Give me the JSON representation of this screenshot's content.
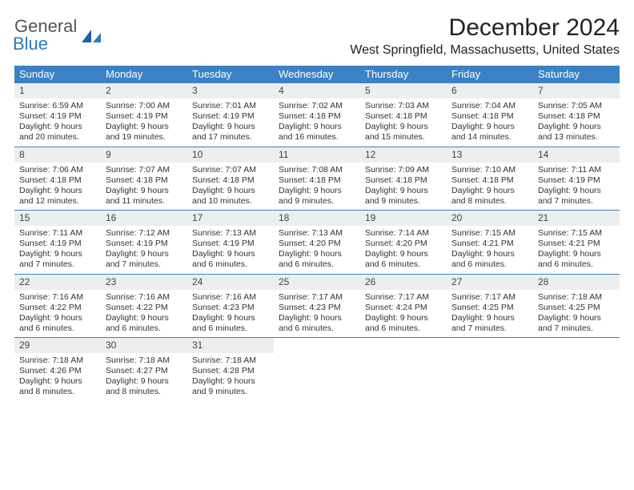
{
  "logo": {
    "line1": "General",
    "line2": "Blue"
  },
  "title": "December 2024",
  "location": "West Springfield, Massachusetts, United States",
  "colors": {
    "header_bg": "#3b82c4",
    "daynum_bg": "#eceeef",
    "border": "#3b82c4",
    "logo_gray": "#555555",
    "logo_blue": "#2b7bbf"
  },
  "weekdays": [
    "Sunday",
    "Monday",
    "Tuesday",
    "Wednesday",
    "Thursday",
    "Friday",
    "Saturday"
  ],
  "days": [
    {
      "n": 1,
      "sr": "6:59 AM",
      "ss": "4:19 PM",
      "dl": "9 hours and 20 minutes."
    },
    {
      "n": 2,
      "sr": "7:00 AM",
      "ss": "4:19 PM",
      "dl": "9 hours and 19 minutes."
    },
    {
      "n": 3,
      "sr": "7:01 AM",
      "ss": "4:19 PM",
      "dl": "9 hours and 17 minutes."
    },
    {
      "n": 4,
      "sr": "7:02 AM",
      "ss": "4:18 PM",
      "dl": "9 hours and 16 minutes."
    },
    {
      "n": 5,
      "sr": "7:03 AM",
      "ss": "4:18 PM",
      "dl": "9 hours and 15 minutes."
    },
    {
      "n": 6,
      "sr": "7:04 AM",
      "ss": "4:18 PM",
      "dl": "9 hours and 14 minutes."
    },
    {
      "n": 7,
      "sr": "7:05 AM",
      "ss": "4:18 PM",
      "dl": "9 hours and 13 minutes."
    },
    {
      "n": 8,
      "sr": "7:06 AM",
      "ss": "4:18 PM",
      "dl": "9 hours and 12 minutes."
    },
    {
      "n": 9,
      "sr": "7:07 AM",
      "ss": "4:18 PM",
      "dl": "9 hours and 11 minutes."
    },
    {
      "n": 10,
      "sr": "7:07 AM",
      "ss": "4:18 PM",
      "dl": "9 hours and 10 minutes."
    },
    {
      "n": 11,
      "sr": "7:08 AM",
      "ss": "4:18 PM",
      "dl": "9 hours and 9 minutes."
    },
    {
      "n": 12,
      "sr": "7:09 AM",
      "ss": "4:18 PM",
      "dl": "9 hours and 9 minutes."
    },
    {
      "n": 13,
      "sr": "7:10 AM",
      "ss": "4:18 PM",
      "dl": "9 hours and 8 minutes."
    },
    {
      "n": 14,
      "sr": "7:11 AM",
      "ss": "4:19 PM",
      "dl": "9 hours and 7 minutes."
    },
    {
      "n": 15,
      "sr": "7:11 AM",
      "ss": "4:19 PM",
      "dl": "9 hours and 7 minutes."
    },
    {
      "n": 16,
      "sr": "7:12 AM",
      "ss": "4:19 PM",
      "dl": "9 hours and 7 minutes."
    },
    {
      "n": 17,
      "sr": "7:13 AM",
      "ss": "4:19 PM",
      "dl": "9 hours and 6 minutes."
    },
    {
      "n": 18,
      "sr": "7:13 AM",
      "ss": "4:20 PM",
      "dl": "9 hours and 6 minutes."
    },
    {
      "n": 19,
      "sr": "7:14 AM",
      "ss": "4:20 PM",
      "dl": "9 hours and 6 minutes."
    },
    {
      "n": 20,
      "sr": "7:15 AM",
      "ss": "4:21 PM",
      "dl": "9 hours and 6 minutes."
    },
    {
      "n": 21,
      "sr": "7:15 AM",
      "ss": "4:21 PM",
      "dl": "9 hours and 6 minutes."
    },
    {
      "n": 22,
      "sr": "7:16 AM",
      "ss": "4:22 PM",
      "dl": "9 hours and 6 minutes."
    },
    {
      "n": 23,
      "sr": "7:16 AM",
      "ss": "4:22 PM",
      "dl": "9 hours and 6 minutes."
    },
    {
      "n": 24,
      "sr": "7:16 AM",
      "ss": "4:23 PM",
      "dl": "9 hours and 6 minutes."
    },
    {
      "n": 25,
      "sr": "7:17 AM",
      "ss": "4:23 PM",
      "dl": "9 hours and 6 minutes."
    },
    {
      "n": 26,
      "sr": "7:17 AM",
      "ss": "4:24 PM",
      "dl": "9 hours and 6 minutes."
    },
    {
      "n": 27,
      "sr": "7:17 AM",
      "ss": "4:25 PM",
      "dl": "9 hours and 7 minutes."
    },
    {
      "n": 28,
      "sr": "7:18 AM",
      "ss": "4:25 PM",
      "dl": "9 hours and 7 minutes."
    },
    {
      "n": 29,
      "sr": "7:18 AM",
      "ss": "4:26 PM",
      "dl": "9 hours and 8 minutes."
    },
    {
      "n": 30,
      "sr": "7:18 AM",
      "ss": "4:27 PM",
      "dl": "9 hours and 8 minutes."
    },
    {
      "n": 31,
      "sr": "7:18 AM",
      "ss": "4:28 PM",
      "dl": "9 hours and 9 minutes."
    }
  ],
  "labels": {
    "sunrise": "Sunrise:",
    "sunset": "Sunset:",
    "daylight": "Daylight:"
  }
}
